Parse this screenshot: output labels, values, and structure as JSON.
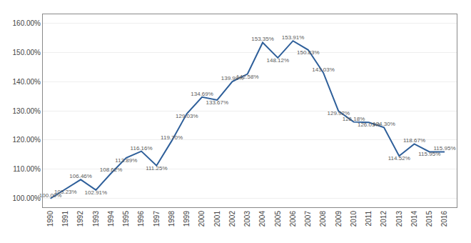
{
  "chart_data": {
    "type": "line",
    "x": [
      1990,
      1991,
      1992,
      1993,
      1994,
      1995,
      1996,
      1997,
      1998,
      1999,
      2000,
      2001,
      2002,
      2003,
      2004,
      2005,
      2006,
      2007,
      2008,
      2009,
      2010,
      2011,
      2012,
      2013,
      2014,
      2015,
      2016
    ],
    "values": [
      100.0,
      103.23,
      106.46,
      102.91,
      108.62,
      113.89,
      116.16,
      111.25,
      119.7,
      129.03,
      134.69,
      133.67,
      139.98,
      142.58,
      153.35,
      148.12,
      153.91,
      150.83,
      143.03,
      129.92,
      126.18,
      126.03,
      124.3,
      114.52,
      118.67,
      115.95,
      115.95
    ],
    "value_labels": [
      "100.00%",
      "103.23%",
      "106.46%",
      "102.91%",
      "108.62%",
      "113.89%",
      "116.16%",
      "111.25%",
      "119.70%",
      "129.03%",
      "134.69%",
      "133.67%",
      "139.98%",
      "142.58%",
      "153.35%",
      "148.12%",
      "153.91%",
      "150.83%",
      "143.03%",
      "129.92%",
      "126.18%",
      "126.03%",
      "124.30%",
      "114.52%",
      "118.67%",
      "115.95%",
      "115.95%"
    ],
    "data_labels": true,
    "color": "#2E5F9A",
    "xlim": [
      1989.5,
      2016.8
    ],
    "xticks": [
      1990,
      1991,
      1992,
      1993,
      1994,
      1995,
      1996,
      1997,
      1998,
      1999,
      2000,
      2001,
      2002,
      2003,
      2004,
      2005,
      2006,
      2007,
      2008,
      2009,
      2010,
      2011,
      2012,
      2013,
      2014,
      2015,
      2016
    ],
    "ylim": [
      97,
      163
    ],
    "yticks": [
      {
        "value": 100.0,
        "label": "100.00%"
      },
      {
        "value": 110.0,
        "label": "110.00%"
      },
      {
        "value": 120.0,
        "label": "120.00%"
      },
      {
        "value": 130.0,
        "label": "130.00%"
      },
      {
        "value": 140.0,
        "label": "140.00%"
      },
      {
        "value": 150.0,
        "label": "150.00%"
      },
      {
        "value": 160.0,
        "label": "160.00%"
      }
    ],
    "grid": "y"
  }
}
